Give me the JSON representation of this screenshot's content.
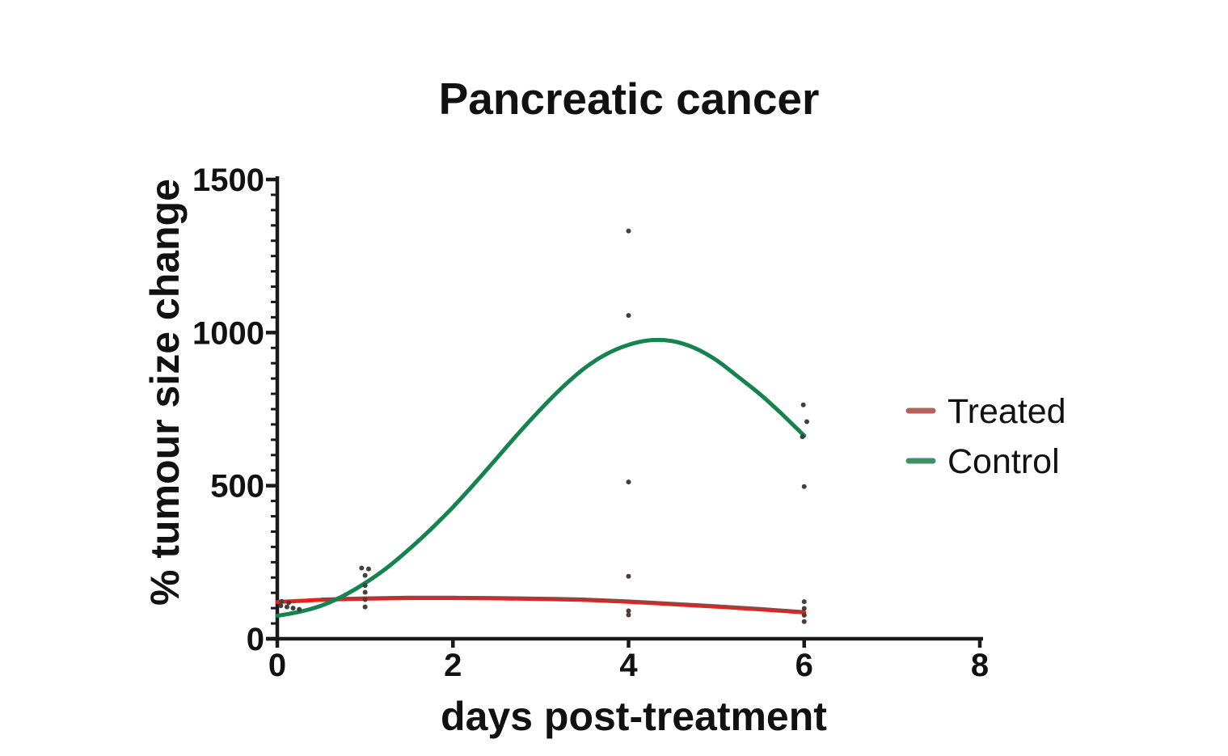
{
  "chart_data": {
    "type": "line+scatter",
    "title": "Pancreatic cancer",
    "xlabel": "days post-treatment",
    "ylabel": "% tumour size change",
    "xlim": [
      0,
      8
    ],
    "ylim": [
      0,
      1500
    ],
    "x_ticks": [
      0,
      2,
      4,
      6,
      8
    ],
    "y_ticks": [
      0,
      500,
      1000,
      1500
    ],
    "y_minor_tick_step": 50,
    "grid": false,
    "legend": {
      "position": "right",
      "entries": [
        {
          "label": "Treated",
          "swatch_color": "#b4605c"
        },
        {
          "label": "Control",
          "swatch_color": "#3f8f6b"
        }
      ]
    },
    "series": [
      {
        "name": "Treated",
        "color": "#e42320",
        "color_dark": "#8e4742",
        "point_color": "#4f3b38",
        "curve": [
          [
            0,
            120
          ],
          [
            0.5,
            127
          ],
          [
            1,
            131
          ],
          [
            1.5,
            133
          ],
          [
            2,
            133
          ],
          [
            2.5,
            132
          ],
          [
            3,
            130
          ],
          [
            3.5,
            127
          ],
          [
            4,
            121
          ],
          [
            4.5,
            113
          ],
          [
            5,
            105
          ],
          [
            5.5,
            96
          ],
          [
            6,
            86
          ]
        ],
        "points": [
          [
            0.05,
            122
          ],
          [
            0.13,
            118
          ],
          [
            1,
            152
          ],
          [
            1,
            128
          ],
          [
            1,
            104
          ],
          [
            4,
            204
          ],
          [
            4,
            91
          ],
          [
            4,
            78
          ],
          [
            6,
            121
          ],
          [
            6,
            99
          ],
          [
            6,
            77
          ],
          [
            6,
            56
          ]
        ]
      },
      {
        "name": "Control",
        "color": "#15834d",
        "point_color": "#39453c",
        "curve": [
          [
            0,
            75
          ],
          [
            0.25,
            88
          ],
          [
            0.5,
            108
          ],
          [
            0.75,
            140
          ],
          [
            1,
            182
          ],
          [
            1.25,
            232
          ],
          [
            1.5,
            292
          ],
          [
            1.75,
            358
          ],
          [
            2,
            430
          ],
          [
            2.25,
            508
          ],
          [
            2.5,
            590
          ],
          [
            2.75,
            672
          ],
          [
            3,
            750
          ],
          [
            3.25,
            822
          ],
          [
            3.5,
            884
          ],
          [
            3.75,
            930
          ],
          [
            4,
            960
          ],
          [
            4.25,
            975
          ],
          [
            4.5,
            972
          ],
          [
            4.75,
            950
          ],
          [
            5,
            910
          ],
          [
            5.25,
            855
          ],
          [
            5.5,
            798
          ],
          [
            5.75,
            733
          ],
          [
            6,
            663
          ]
        ],
        "points": [
          [
            0.04,
            108
          ],
          [
            0.11,
            104
          ],
          [
            0.18,
            100
          ],
          [
            0.25,
            96
          ],
          [
            0.96,
            231
          ],
          [
            1.04,
            228
          ],
          [
            1,
            207
          ],
          [
            1,
            174
          ],
          [
            4,
            1332
          ],
          [
            4,
            1056
          ],
          [
            4,
            512
          ],
          [
            5.99,
            764
          ],
          [
            6.03,
            709
          ],
          [
            6,
            497
          ],
          [
            5.98,
            660
          ]
        ]
      }
    ]
  }
}
